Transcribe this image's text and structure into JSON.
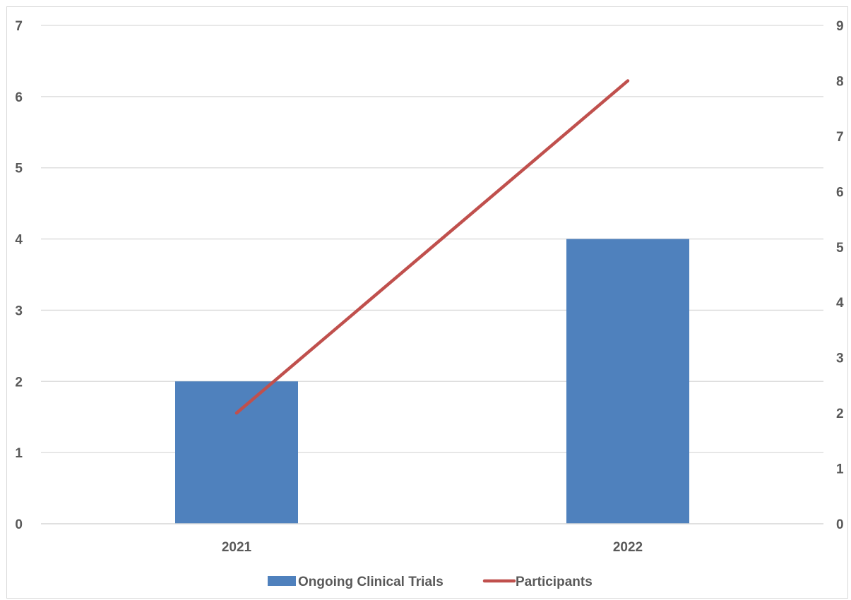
{
  "chart_data": {
    "type": "bar",
    "categories": [
      "2021",
      "2022"
    ],
    "series": [
      {
        "name": "Ongoing Clinical Trials",
        "type": "bar",
        "axis": "left",
        "values": [
          2,
          4
        ],
        "color": "#4F81BD"
      },
      {
        "name": "Participants",
        "type": "line",
        "axis": "right",
        "values": [
          2,
          8
        ],
        "color": "#C0504D"
      }
    ],
    "y_left": {
      "ylim": [
        0,
        7
      ],
      "ticks": [
        "0",
        "1",
        "2",
        "3",
        "4",
        "5",
        "6",
        "7"
      ]
    },
    "y_right": {
      "ylim": [
        0,
        9
      ],
      "ticks": [
        "0",
        "1",
        "2",
        "3",
        "4",
        "5",
        "6",
        "7",
        "8",
        "9"
      ]
    },
    "title": "",
    "xlabel": "",
    "ylabel": "",
    "grid": true,
    "legend_position": "bottom"
  }
}
